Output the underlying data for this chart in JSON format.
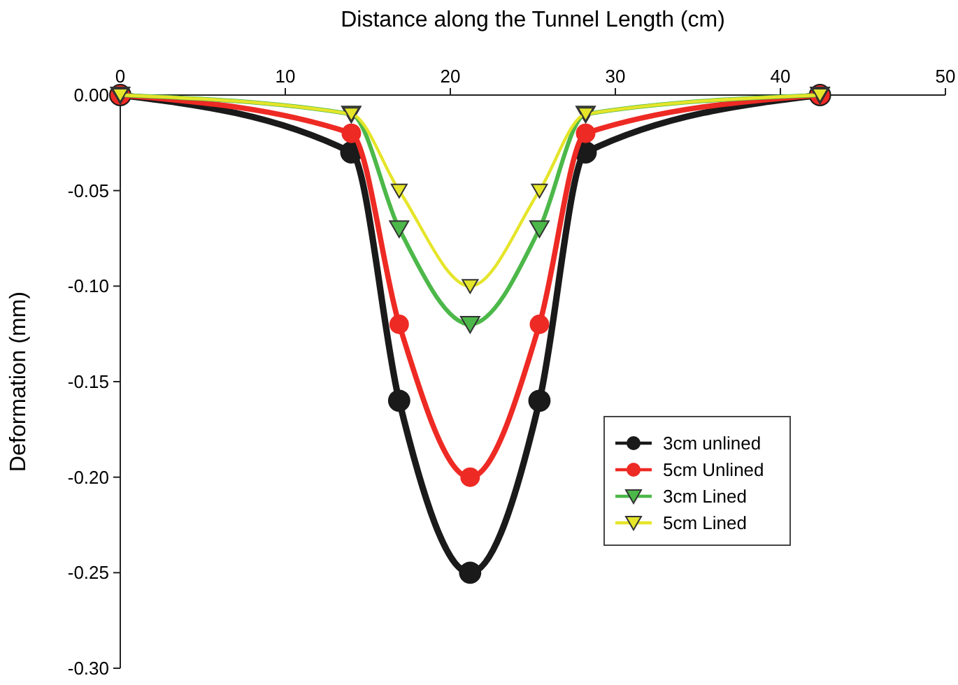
{
  "chart_data": {
    "type": "line",
    "xlabel": "Distance along the Tunnel Length (cm)",
    "ylabel": "Deformation (mm)",
    "xlim": [
      0,
      50
    ],
    "xticks": [
      0,
      10,
      20,
      30,
      40,
      50
    ],
    "ylim": [
      -0.3,
      0
    ],
    "yticks": [
      {
        "value": 0,
        "label": "0.00"
      },
      {
        "value": -0.05,
        "label": "-0.05"
      },
      {
        "value": -0.1,
        "label": "-0.10"
      },
      {
        "value": -0.15,
        "label": "-0.15"
      },
      {
        "value": -0.2,
        "label": "-0.20"
      },
      {
        "value": -0.25,
        "label": "-0.25"
      },
      {
        "value": -0.3,
        "label": "-0.30"
      }
    ],
    "x": [
      0,
      14,
      16.9,
      21.2,
      25.4,
      28.2,
      42.4
    ],
    "legend": "bottom right",
    "grid": false,
    "series": [
      {
        "name": "3cm unlined",
        "color": "#1a1a1a",
        "marker": "circle",
        "values": [
          0,
          -0.03,
          -0.16,
          -0.25,
          -0.16,
          -0.03,
          0
        ]
      },
      {
        "name": "5cm Unlined",
        "color": "#ee2a24",
        "marker": "circle",
        "values": [
          0,
          -0.02,
          -0.12,
          -0.2,
          -0.12,
          -0.02,
          0
        ]
      },
      {
        "name": "3cm Lined",
        "color": "#4cb849",
        "marker": "triangle",
        "values": [
          0,
          -0.01,
          -0.07,
          -0.12,
          -0.07,
          -0.01,
          0
        ]
      },
      {
        "name": "5cm Lined",
        "color": "#e5e52a",
        "marker": "triangle",
        "values": [
          0,
          -0.01,
          -0.05,
          -0.1,
          -0.05,
          -0.01,
          0
        ]
      }
    ]
  }
}
